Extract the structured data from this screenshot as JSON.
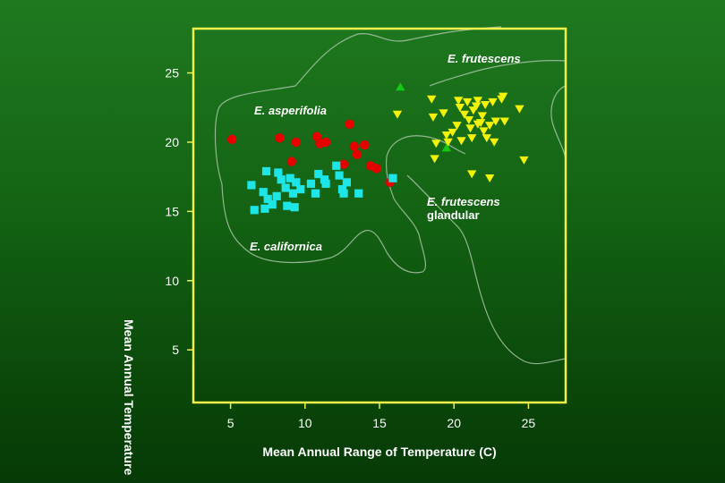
{
  "chart_data": {
    "type": "scatter",
    "title": "",
    "xlabel": "Mean Annual Range of Temperature (C)",
    "ylabel": "Mean Annual Temperature",
    "xlim": [
      2.5,
      27.5
    ],
    "ylim": [
      1.2,
      28.2
    ],
    "xticks": [
      5,
      10,
      15,
      20,
      25
    ],
    "yticks": [
      5,
      10,
      15,
      20,
      25
    ],
    "frame_color": "#f0f04a",
    "region_labels": [
      {
        "text": "E. frutescens",
        "italic": true
      },
      {
        "text": "E. asperifolia",
        "italic": true
      },
      {
        "text": "E. frutescens",
        "italic": true
      },
      {
        "text": "glandular",
        "italic": false
      },
      {
        "text": "E. californica",
        "italic": true
      }
    ],
    "series": [
      {
        "name": "E. asperifolia",
        "marker": "circle",
        "color": "#e60000",
        "points": [
          [
            5.1,
            20.2
          ],
          [
            8.3,
            20.3
          ],
          [
            9.4,
            20.0
          ],
          [
            10.8,
            20.4
          ],
          [
            11.0,
            19.9
          ],
          [
            11.4,
            20.0
          ],
          [
            13.0,
            21.3
          ],
          [
            13.3,
            19.7
          ],
          [
            13.5,
            19.1
          ],
          [
            14.0,
            19.8
          ],
          [
            12.6,
            18.4
          ],
          [
            14.4,
            18.3
          ],
          [
            14.8,
            18.1
          ],
          [
            9.1,
            18.6
          ],
          [
            15.7,
            17.1
          ]
        ]
      },
      {
        "name": "E. californica",
        "marker": "square",
        "color": "#1ee6e6",
        "points": [
          [
            6.4,
            16.9
          ],
          [
            7.2,
            16.4
          ],
          [
            7.4,
            17.9
          ],
          [
            7.5,
            15.9
          ],
          [
            7.8,
            15.5
          ],
          [
            8.1,
            16.1
          ],
          [
            8.2,
            17.8
          ],
          [
            8.4,
            17.3
          ],
          [
            8.7,
            16.7
          ],
          [
            9.0,
            17.4
          ],
          [
            9.2,
            16.3
          ],
          [
            9.4,
            17.1
          ],
          [
            9.7,
            16.6
          ],
          [
            8.8,
            15.4
          ],
          [
            9.3,
            15.3
          ],
          [
            10.4,
            17.0
          ],
          [
            10.7,
            16.3
          ],
          [
            10.9,
            17.7
          ],
          [
            11.3,
            17.3
          ],
          [
            11.4,
            17.0
          ],
          [
            12.1,
            18.3
          ],
          [
            12.3,
            17.6
          ],
          [
            12.5,
            16.6
          ],
          [
            12.6,
            16.3
          ],
          [
            12.8,
            17.1
          ],
          [
            13.6,
            16.3
          ],
          [
            7.3,
            15.2
          ],
          [
            6.6,
            15.1
          ],
          [
            15.9,
            17.4
          ]
        ]
      },
      {
        "name": "E. frutescens",
        "marker": "triangle-down",
        "color": "#f2f20a",
        "points": [
          [
            16.2,
            22.0
          ],
          [
            18.5,
            23.1
          ],
          [
            18.6,
            21.8
          ],
          [
            18.8,
            19.9
          ],
          [
            18.7,
            18.8
          ],
          [
            19.3,
            22.1
          ],
          [
            19.5,
            20.5
          ],
          [
            19.6,
            20.0
          ],
          [
            20.2,
            21.2
          ],
          [
            20.4,
            22.5
          ],
          [
            20.7,
            22.0
          ],
          [
            20.9,
            22.9
          ],
          [
            21.0,
            21.6
          ],
          [
            21.1,
            21.0
          ],
          [
            21.2,
            20.3
          ],
          [
            21.3,
            22.3
          ],
          [
            21.5,
            22.6
          ],
          [
            21.6,
            23.0
          ],
          [
            21.8,
            21.4
          ],
          [
            22.0,
            20.8
          ],
          [
            22.2,
            20.3
          ],
          [
            22.4,
            21.2
          ],
          [
            22.6,
            22.9
          ],
          [
            22.8,
            21.5
          ],
          [
            23.2,
            23.1
          ],
          [
            23.4,
            21.5
          ],
          [
            23.3,
            23.3
          ],
          [
            24.4,
            22.4
          ],
          [
            19.9,
            20.7
          ],
          [
            20.5,
            20.1
          ],
          [
            21.9,
            21.9
          ],
          [
            22.1,
            22.7
          ],
          [
            22.7,
            20.0
          ],
          [
            20.3,
            23.0
          ],
          [
            21.2,
            17.7
          ],
          [
            22.4,
            17.4
          ],
          [
            24.7,
            18.7
          ],
          [
            21.6,
            21.3
          ]
        ]
      },
      {
        "name": "E. frutescens glandular",
        "marker": "triangle-up",
        "color": "#14c814",
        "points": [
          [
            16.4,
            24.0
          ],
          [
            19.5,
            19.6
          ]
        ]
      }
    ]
  }
}
